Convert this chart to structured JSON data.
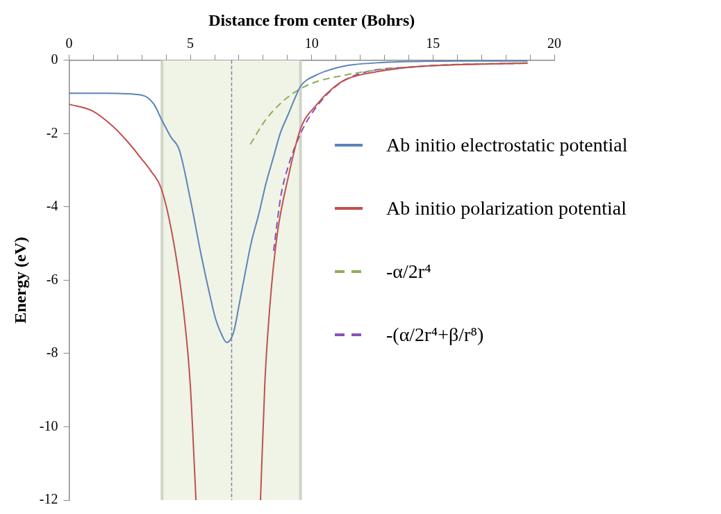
{
  "chart_data": {
    "type": "line",
    "xlabel": "Distance from center (Bohrs)",
    "ylabel": "Energy (eV)",
    "xlim": [
      0,
      20
    ],
    "ylim": [
      -12,
      0
    ],
    "xticks": [
      0,
      {
        "value": 1,
        "label": null
      },
      {
        "value": 2,
        "label": null
      },
      {
        "value": 3,
        "label": null
      },
      {
        "value": 4,
        "label": null
      },
      5,
      {
        "value": 6,
        "label": null
      },
      {
        "value": 7,
        "label": null
      },
      {
        "value": 8,
        "label": null
      },
      {
        "value": 9,
        "label": null
      },
      10,
      {
        "value": 11,
        "label": null
      },
      {
        "value": 12,
        "label": null
      },
      {
        "value": 13,
        "label": null
      },
      {
        "value": 14,
        "label": null
      },
      15,
      {
        "value": 16,
        "label": null
      },
      {
        "value": 17,
        "label": null
      },
      {
        "value": 18,
        "label": null
      },
      {
        "value": 19,
        "label": null
      },
      20
    ],
    "yticks": [
      -12,
      -10,
      -8,
      -6,
      -4,
      -2,
      0
    ],
    "grid": false,
    "legend": "right",
    "marker": "none",
    "series": [
      {
        "name": "Ab initio electrostatic potential",
        "color": "#5b84b8",
        "line_style": "solid",
        "x": [
          0,
          1.5,
          3,
          3.5,
          3.8,
          4.2,
          4.54,
          5,
          5.44,
          5.8,
          6.04,
          6.3,
          6.5,
          6.79,
          7,
          7.23,
          7.5,
          7.83,
          8.1,
          8.43,
          8.7,
          9.03,
          9.3,
          9.54,
          10.2,
          10.8,
          11.4,
          12.9,
          14.4,
          16.5,
          18.9
        ],
        "values": [
          -0.9,
          -0.9,
          -0.95,
          -1.2,
          -1.6,
          -2.1,
          -2.44,
          -3.8,
          -5.3,
          -6.4,
          -7.06,
          -7.5,
          -7.7,
          -7.4,
          -6.7,
          -5.9,
          -5.0,
          -4.17,
          -3.4,
          -2.63,
          -2.0,
          -1.48,
          -1.05,
          -0.71,
          -0.4,
          -0.25,
          -0.15,
          -0.06,
          -0.03,
          -0.02,
          -0.02
        ]
      },
      {
        "name": "Ab initio polarization potential",
        "color": "#c0504d",
        "line_style": "solid",
        "x": [
          0,
          0.96,
          1.8,
          2.45,
          3.0,
          3.35,
          3.8,
          4.25,
          4.69,
          4.99,
          5.23,
          6.5,
          7.89,
          8.07,
          8.28,
          8.58,
          9.03,
          9.54,
          10.22,
          10.8,
          11.42,
          12.9,
          14.4,
          17.4,
          18.9
        ],
        "values": [
          -1.2,
          -1.38,
          -1.8,
          -2.25,
          -2.7,
          -3.0,
          -3.5,
          -4.75,
          -6.67,
          -8.8,
          -12,
          null,
          -12,
          -8.8,
          -6.67,
          -4.75,
          -3.2,
          -1.87,
          -1.2,
          -0.8,
          -0.52,
          -0.29,
          -0.17,
          -0.1,
          -0.08
        ]
      },
      {
        "name": "-α/2r⁴",
        "color": "#8fad5a",
        "line_style": "dashed",
        "x": [
          7.47,
          8.13,
          9.03,
          9.93,
          11.4,
          12.9,
          15.9,
          18.9
        ],
        "values": [
          -2.29,
          -1.6,
          -1.0,
          -0.65,
          -0.4,
          -0.25,
          -0.12,
          -0.07
        ]
      },
      {
        "name": "-(α/2r⁴+β/r⁸)",
        "color": "#8a4fc0",
        "line_style": "dashed",
        "x": [
          8.43,
          8.73,
          9.03,
          9.54,
          10.22,
          11.42,
          14.4,
          18.9
        ],
        "values": [
          -5.2,
          -3.7,
          -2.9,
          -2.0,
          -1.25,
          -0.52,
          -0.17,
          -0.08
        ]
      }
    ],
    "bands": [
      {
        "axis": "x",
        "from": 3.83,
        "to": 9.54,
        "color": "#eff4e6"
      }
    ],
    "ref_lines": [
      {
        "axis": "x",
        "value": 6.7,
        "color": "#8a7fa0",
        "line_style": "dashed"
      },
      {
        "axis": "x",
        "value": 3.83,
        "color": "#d0d4c8",
        "line_style": "solid"
      },
      {
        "axis": "x",
        "value": 9.54,
        "color": "#d0d4c8",
        "line_style": "solid"
      }
    ]
  }
}
